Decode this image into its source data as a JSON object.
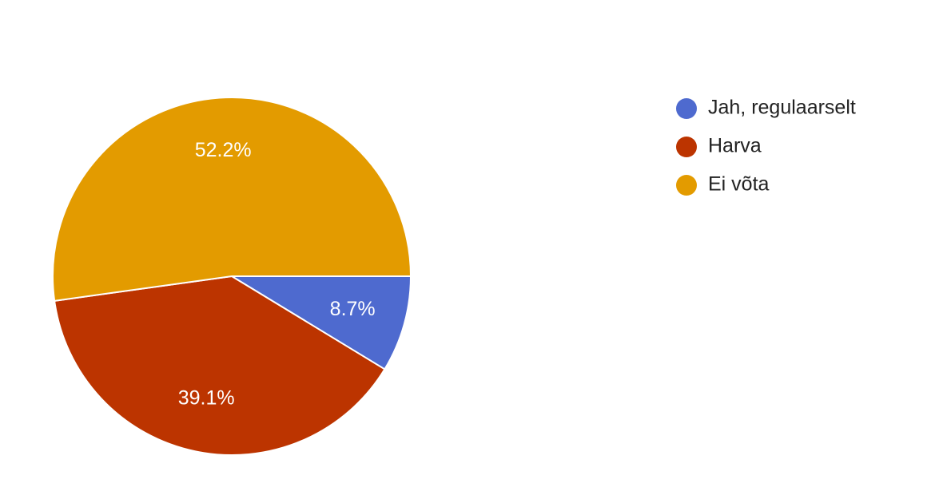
{
  "chart_data": {
    "type": "pie",
    "categories": [
      "Jah, regulaarselt",
      "Harva",
      "Ei võta"
    ],
    "values": [
      8.7,
      39.1,
      52.2
    ],
    "value_labels": [
      "8.7%",
      "39.1%",
      "52.2%"
    ],
    "colors": [
      "#4e6acf",
      "#bc3400",
      "#e39b00"
    ]
  }
}
